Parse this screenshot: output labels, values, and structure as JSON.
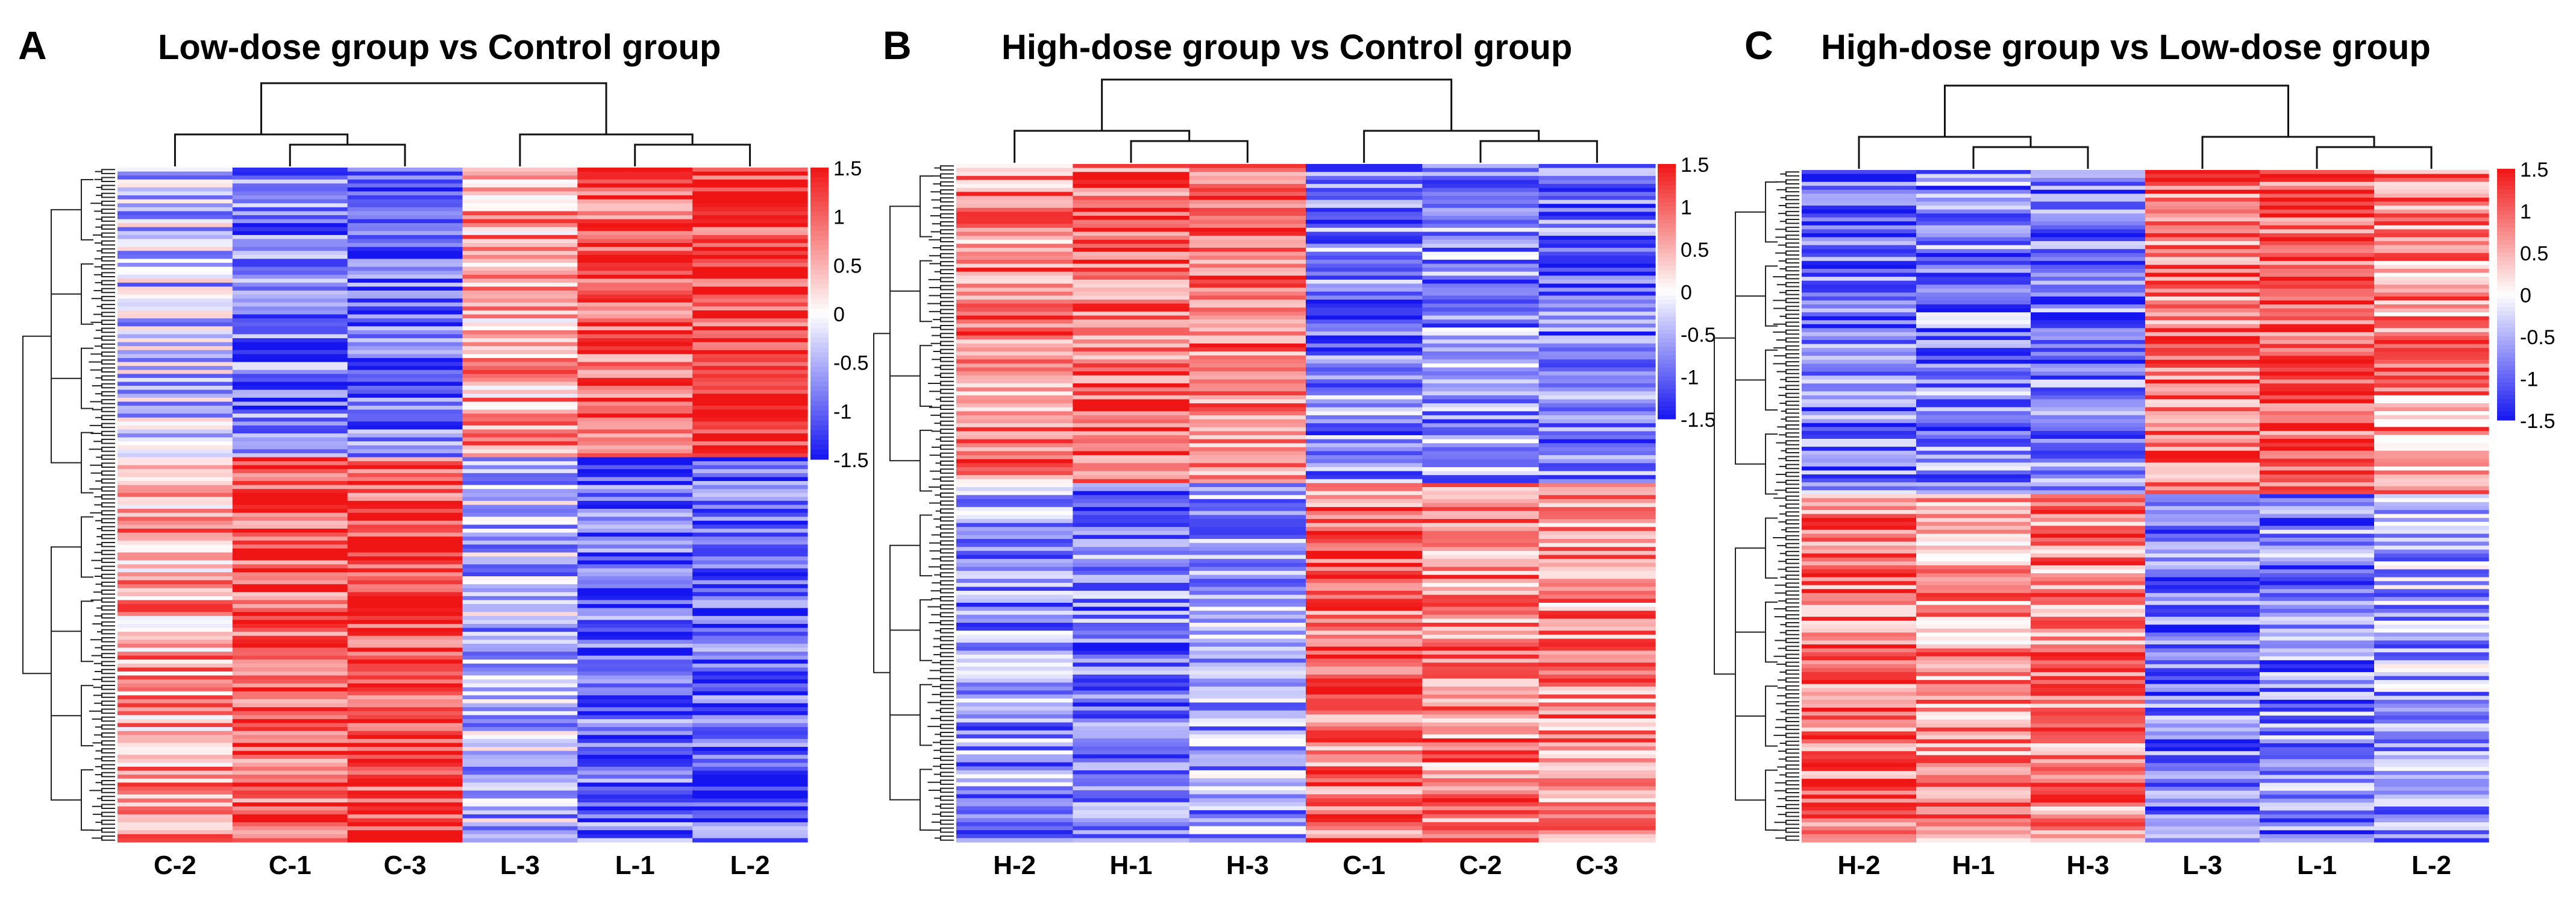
{
  "chart_data": [
    {
      "type": "heatmap",
      "panel_label": "A",
      "title": "Low-dose group vs Control group",
      "columns": [
        "C-2",
        "C-1",
        "C-3",
        "L-3",
        "L-1",
        "L-2"
      ],
      "row_clusters": [
        {
          "cluster": "upper",
          "column_means": [
            -0.4,
            -0.9,
            -1.0,
            0.6,
            1.1,
            1.3
          ]
        },
        {
          "cluster": "lower",
          "column_means": [
            0.6,
            1.1,
            1.2,
            -0.5,
            -1.0,
            -1.1
          ]
        }
      ],
      "column_dendrogram": {
        "left_group": [
          "C-2",
          "C-1",
          "C-3"
        ],
        "right_group": [
          "L-3",
          "L-1",
          "L-2"
        ]
      },
      "legend": {
        "ticks": [
          1.5,
          1,
          0.5,
          0,
          -0.5,
          -1,
          -1.5
        ],
        "tick_labels": [
          "1.5",
          "1",
          "0.5",
          "0",
          "-0.5",
          "-1",
          "-1.5"
        ],
        "range": [
          -1.5,
          1.5
        ],
        "low_color": "#1515f0",
        "mid_color": "#ffffff",
        "high_color": "#f01515"
      }
    },
    {
      "type": "heatmap",
      "panel_label": "B",
      "title": "High-dose group vs Control group",
      "columns": [
        "H-2",
        "H-1",
        "H-3",
        "C-1",
        "C-2",
        "C-3"
      ],
      "row_clusters": [
        {
          "cluster": "upper",
          "column_means": [
            0.8,
            1.0,
            0.9,
            -0.8,
            -0.7,
            -0.9
          ]
        },
        {
          "cluster": "lower",
          "column_means": [
            -0.7,
            -0.9,
            -0.6,
            0.9,
            0.8,
            0.7
          ]
        }
      ],
      "column_dendrogram": {
        "left_group": [
          "H-2",
          "H-1",
          "H-3"
        ],
        "right_group": [
          "C-1",
          "C-2",
          "C-3"
        ]
      },
      "legend": {
        "ticks": [
          1.5,
          1,
          0.5,
          0,
          -0.5,
          -1,
          -1.5
        ],
        "tick_labels": [
          "1.5",
          "1",
          "0.5",
          "0",
          "-0.5",
          "-1",
          "-1.5"
        ],
        "range": [
          -1.5,
          1.5
        ],
        "low_color": "#1515f0",
        "mid_color": "#ffffff",
        "high_color": "#f01515"
      }
    },
    {
      "type": "heatmap",
      "panel_label": "C",
      "title": "High-dose group vs Low-dose group",
      "columns": [
        "H-2",
        "H-1",
        "H-3",
        "L-3",
        "L-1",
        "L-2"
      ],
      "row_clusters": [
        {
          "cluster": "upper",
          "column_means": [
            -0.9,
            -0.8,
            -0.9,
            0.9,
            1.1,
            0.7
          ]
        },
        {
          "cluster": "lower",
          "column_means": [
            0.9,
            0.7,
            0.8,
            -0.9,
            -0.8,
            -0.6
          ]
        }
      ],
      "column_dendrogram": {
        "left_group": [
          "H-2",
          "H-1",
          "H-3"
        ],
        "right_group": [
          "L-3",
          "L-1",
          "L-2"
        ]
      },
      "legend": {
        "ticks": [
          1.5,
          1,
          0.5,
          0,
          -0.5,
          -1,
          -1.5
        ],
        "tick_labels": [
          "1.5",
          "1",
          "0.5",
          "0",
          "-0.5",
          "-1",
          "-1.5"
        ],
        "range": [
          -1.5,
          1.5
        ],
        "low_color": "#1515f0",
        "mid_color": "#ffffff",
        "high_color": "#f01515"
      }
    }
  ]
}
